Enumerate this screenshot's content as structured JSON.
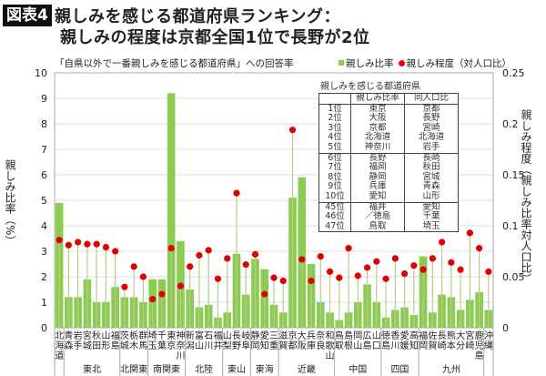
{
  "badge": "図表4",
  "title_line1": "親しみを感じる都道府県ランキング：",
  "title_line2": "親しみの程度は京都全国1位で長野が2位",
  "chart_data": {
    "type": "bar+scatter",
    "subtitle": "「自県以外で一番親しみを感じる都道府県」への回答率",
    "ylabel": "親しみ比率（%）",
    "y2label": "親しみ程度（親しみ比率対人口比）",
    "ylim": [
      0,
      10
    ],
    "y2lim": [
      0,
      0.25
    ],
    "yticks": [
      "0",
      "1",
      "2",
      "3",
      "4",
      "5",
      "6",
      "7",
      "8",
      "9",
      "10"
    ],
    "y2ticks": [
      "0",
      "0.05",
      "0.1",
      "0.15",
      "0.2",
      "0.25"
    ],
    "grid": true,
    "legend_position": "top-right",
    "colors": {
      "bar": "#8dcc52",
      "dot": "#e00000",
      "stem": "#b8cc90"
    },
    "categories": [
      "北海道",
      "青森",
      "岩手",
      "宮城",
      "秋田",
      "山形",
      "福島",
      "茨城",
      "栃木",
      "群馬",
      "埼玉",
      "千葉",
      "東京",
      "神奈川",
      "新潟",
      "富山",
      "石川",
      "福井",
      "山梨",
      "長野",
      "岐阜",
      "静岡",
      "愛知",
      "三重",
      "滋賀",
      "京都",
      "大阪",
      "兵庫",
      "奈良",
      "和歌山",
      "鳥取",
      "島根",
      "岡山",
      "広島",
      "山口",
      "徳島",
      "香川",
      "愛媛",
      "高知",
      "福岡",
      "佐賀",
      "長崎",
      "熊本",
      "大分",
      "宮崎",
      "鹿児島",
      "沖縄"
    ],
    "regions": [
      {
        "name": "",
        "count": 1
      },
      {
        "name": "東北",
        "count": 6
      },
      {
        "name": "北関東",
        "count": 3
      },
      {
        "name": "南関東",
        "count": 4
      },
      {
        "name": "北陸",
        "count": 4
      },
      {
        "name": "東山",
        "count": 3
      },
      {
        "name": "東海",
        "count": 3
      },
      {
        "name": "近畿",
        "count": 6
      },
      {
        "name": "中国",
        "count": 5
      },
      {
        "name": "四国",
        "count": 4
      },
      {
        "name": "九州",
        "count": 7
      },
      {
        "name": "",
        "count": 1
      }
    ],
    "series": [
      {
        "name": "親しみ比率",
        "axis": "left",
        "type": "bar",
        "values": [
          4.9,
          1.2,
          1.2,
          1.9,
          1.0,
          1.0,
          1.6,
          1.2,
          1.2,
          1.0,
          1.9,
          1.9,
          9.2,
          3.4,
          1.5,
          0.8,
          0.9,
          0.4,
          0.6,
          2.9,
          1.3,
          2.7,
          2.3,
          0.9,
          0.6,
          5.1,
          5.9,
          2.5,
          1.0,
          0.6,
          0.3,
          0.6,
          1.0,
          1.7,
          1.0,
          0.4,
          0.7,
          0.8,
          0.5,
          2.8,
          0.6,
          1.3,
          1.2,
          0.7,
          1.1,
          1.4,
          0.7
        ]
      },
      {
        "name": "親しみ程度（対人口比）",
        "axis": "right",
        "type": "scatter",
        "values": [
          0.086,
          0.081,
          0.084,
          0.082,
          0.082,
          0.079,
          0.075,
          0.04,
          0.06,
          0.05,
          0.028,
          0.033,
          0.078,
          0.041,
          0.06,
          0.071,
          0.076,
          0.048,
          0.068,
          0.132,
          0.062,
          0.072,
          0.033,
          0.049,
          0.046,
          0.194,
          0.067,
          0.046,
          0.07,
          0.055,
          0.049,
          0.078,
          0.051,
          0.059,
          0.065,
          0.048,
          0.068,
          0.053,
          0.061,
          0.057,
          0.068,
          0.084,
          0.064,
          0.057,
          0.093,
          0.078,
          0.055
        ]
      }
    ]
  },
  "ranking": {
    "caption": "親しみを感じる都道府県",
    "headers": [
      "",
      "親しみ比率",
      "同人口比"
    ],
    "rows": [
      [
        "1位",
        "東京",
        "京都"
      ],
      [
        "2位",
        "大阪",
        "長野"
      ],
      [
        "3位",
        "京都",
        "宮崎"
      ],
      [
        "4位",
        "北海道",
        "北海道"
      ],
      [
        "5位",
        "神奈川",
        "岩手"
      ],
      [
        "6位",
        "長野",
        "長崎"
      ],
      [
        "7位",
        "福岡",
        "秋田"
      ],
      [
        "8位",
        "静岡",
        "宮城"
      ],
      [
        "9位",
        "兵庫",
        "青森"
      ],
      [
        "10位",
        "愛知",
        "山形"
      ],
      [
        "45位",
        "福井",
        "愛知"
      ],
      [
        "46位",
        "／徳島",
        "千葉"
      ],
      [
        "47位",
        "鳥取",
        "埼玉"
      ]
    ]
  }
}
